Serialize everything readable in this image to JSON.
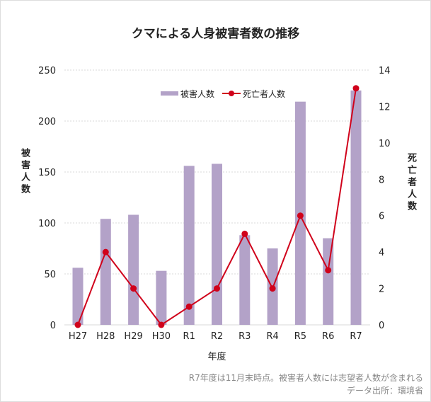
{
  "chart_data": {
    "type": "bar+line",
    "title": "クマによる人身被害者数の推移",
    "categories": [
      "H27",
      "H28",
      "H29",
      "H30",
      "R1",
      "R2",
      "R3",
      "R4",
      "R5",
      "R6",
      "R7"
    ],
    "xlabel": "年度",
    "ylabel_left": "被害人数",
    "ylabel_right": "死亡者人数",
    "ylim_left": [
      0,
      250
    ],
    "yticks_left": [
      0,
      50,
      100,
      150,
      200,
      250
    ],
    "ylim_right": [
      0,
      14
    ],
    "yticks_right": [
      0,
      2,
      4,
      6,
      8,
      10,
      12,
      14
    ],
    "grid": true,
    "legend_position": "top-center",
    "series": [
      {
        "name": "被害人数",
        "type": "bar",
        "axis": "left",
        "color": "#b3a2c8",
        "values": [
          56,
          104,
          108,
          53,
          156,
          158,
          88,
          75,
          219,
          85,
          230
        ]
      },
      {
        "name": "死亡者人数",
        "type": "line",
        "axis": "right",
        "color": "#d0021b",
        "values": [
          0,
          4,
          2,
          0,
          1,
          2,
          5,
          2,
          6,
          3,
          13
        ]
      }
    ]
  },
  "notes": {
    "line1": "R7年度は11月末時点。被害者人数には志望者人数が含まれる",
    "line2": "データ出所：環境省"
  }
}
